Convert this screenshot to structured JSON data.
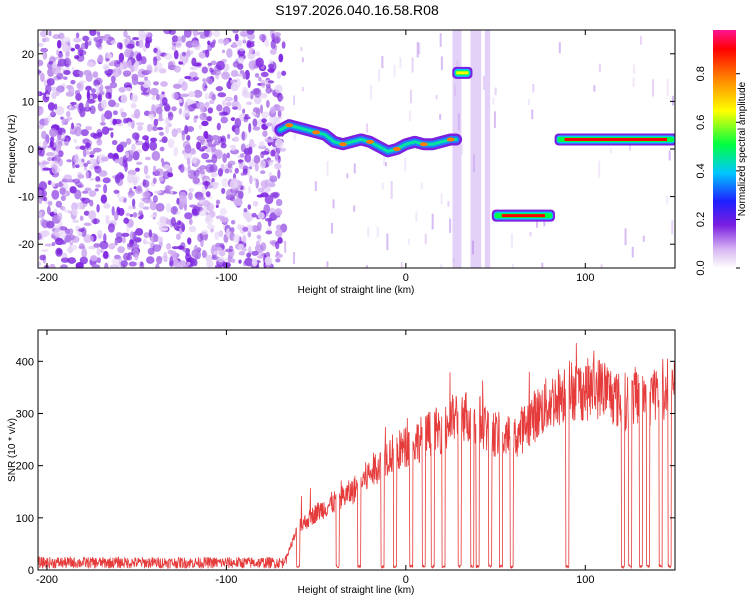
{
  "title": "S197.2026.040.16.58.R08",
  "colors": {
    "snr_line": "#e53b3b",
    "frame": "#000000"
  },
  "chart_data": [
    {
      "type": "heatmap",
      "xlabel": "Height of straight line (km)",
      "ylabel": "Frequency (Hz)",
      "xlim": [
        -205,
        150
      ],
      "ylim": [
        -25,
        25
      ],
      "xticks": [
        -200,
        -100,
        0,
        100
      ],
      "yticks": [
        -20,
        -10,
        0,
        10,
        20
      ],
      "noise_region_x": [
        -205,
        -68
      ],
      "signal_track": [
        {
          "x": -70,
          "y": 4.0
        },
        {
          "x": -65,
          "y": 5.0
        },
        {
          "x": -60,
          "y": 4.5
        },
        {
          "x": -55,
          "y": 4.0
        },
        {
          "x": -50,
          "y": 3.5
        },
        {
          "x": -45,
          "y": 3.0
        },
        {
          "x": -40,
          "y": 1.5
        },
        {
          "x": -35,
          "y": 1.0
        },
        {
          "x": -30,
          "y": 1.5
        },
        {
          "x": -25,
          "y": 2.0
        },
        {
          "x": -20,
          "y": 1.5
        },
        {
          "x": -15,
          "y": 0.5
        },
        {
          "x": -10,
          "y": -0.5
        },
        {
          "x": -5,
          "y": 0.0
        },
        {
          "x": 0,
          "y": 1.0
        },
        {
          "x": 5,
          "y": 1.5
        },
        {
          "x": 10,
          "y": 1.0
        },
        {
          "x": 15,
          "y": 1.0
        },
        {
          "x": 20,
          "y": 1.5
        },
        {
          "x": 25,
          "y": 2.0
        },
        {
          "x": 28,
          "y": 2.0
        }
      ],
      "signal_segments": [
        {
          "x0": 27,
          "x1": 36,
          "y": 16
        },
        {
          "x0": 49,
          "x1": 82,
          "y": -14
        },
        {
          "x0": 84,
          "x1": 150,
          "y": 2
        }
      ],
      "colorbar": {
        "label": "Normalized spectral amplitude",
        "ticks": [
          0.0,
          0.2,
          0.4,
          0.6,
          0.8
        ],
        "tick_labels": [
          "0.0",
          "0.2",
          "0.4",
          "0.6",
          "0.8"
        ],
        "range": [
          0,
          0.98
        ]
      }
    },
    {
      "type": "line",
      "xlabel": "Height of straight line (km)",
      "ylabel": "SNR (10 * v/v)",
      "xlim": [
        -205,
        150
      ],
      "ylim": [
        0,
        460
      ],
      "xticks": [
        -200,
        -100,
        0,
        100
      ],
      "yticks": [
        0,
        100,
        200,
        300,
        400
      ],
      "series": [
        {
          "baseline": [
            {
              "x": -205,
              "y": 14
            },
            {
              "x": -68,
              "y": 14
            },
            {
              "x": -60,
              "y": 80
            },
            {
              "x": -50,
              "y": 110
            },
            {
              "x": -40,
              "y": 130
            },
            {
              "x": -30,
              "y": 150
            },
            {
              "x": -20,
              "y": 185
            },
            {
              "x": -10,
              "y": 220
            },
            {
              "x": 0,
              "y": 235
            },
            {
              "x": 10,
              "y": 255
            },
            {
              "x": 20,
              "y": 270
            },
            {
              "x": 30,
              "y": 300
            },
            {
              "x": 40,
              "y": 290
            },
            {
              "x": 50,
              "y": 260
            },
            {
              "x": 60,
              "y": 250
            },
            {
              "x": 70,
              "y": 290
            },
            {
              "x": 80,
              "y": 320
            },
            {
              "x": 90,
              "y": 345
            },
            {
              "x": 100,
              "y": 345
            },
            {
              "x": 110,
              "y": 350
            },
            {
              "x": 120,
              "y": 320
            },
            {
              "x": 130,
              "y": 335
            },
            {
              "x": 140,
              "y": 345
            },
            {
              "x": 150,
              "y": 350
            }
          ],
          "dropouts_x": [
            -60,
            -38,
            -26,
            -13,
            -6,
            3,
            10,
            15,
            21,
            30,
            37,
            40,
            47,
            53,
            59,
            90,
            121,
            125,
            131,
            135,
            142,
            147
          ]
        }
      ]
    }
  ]
}
